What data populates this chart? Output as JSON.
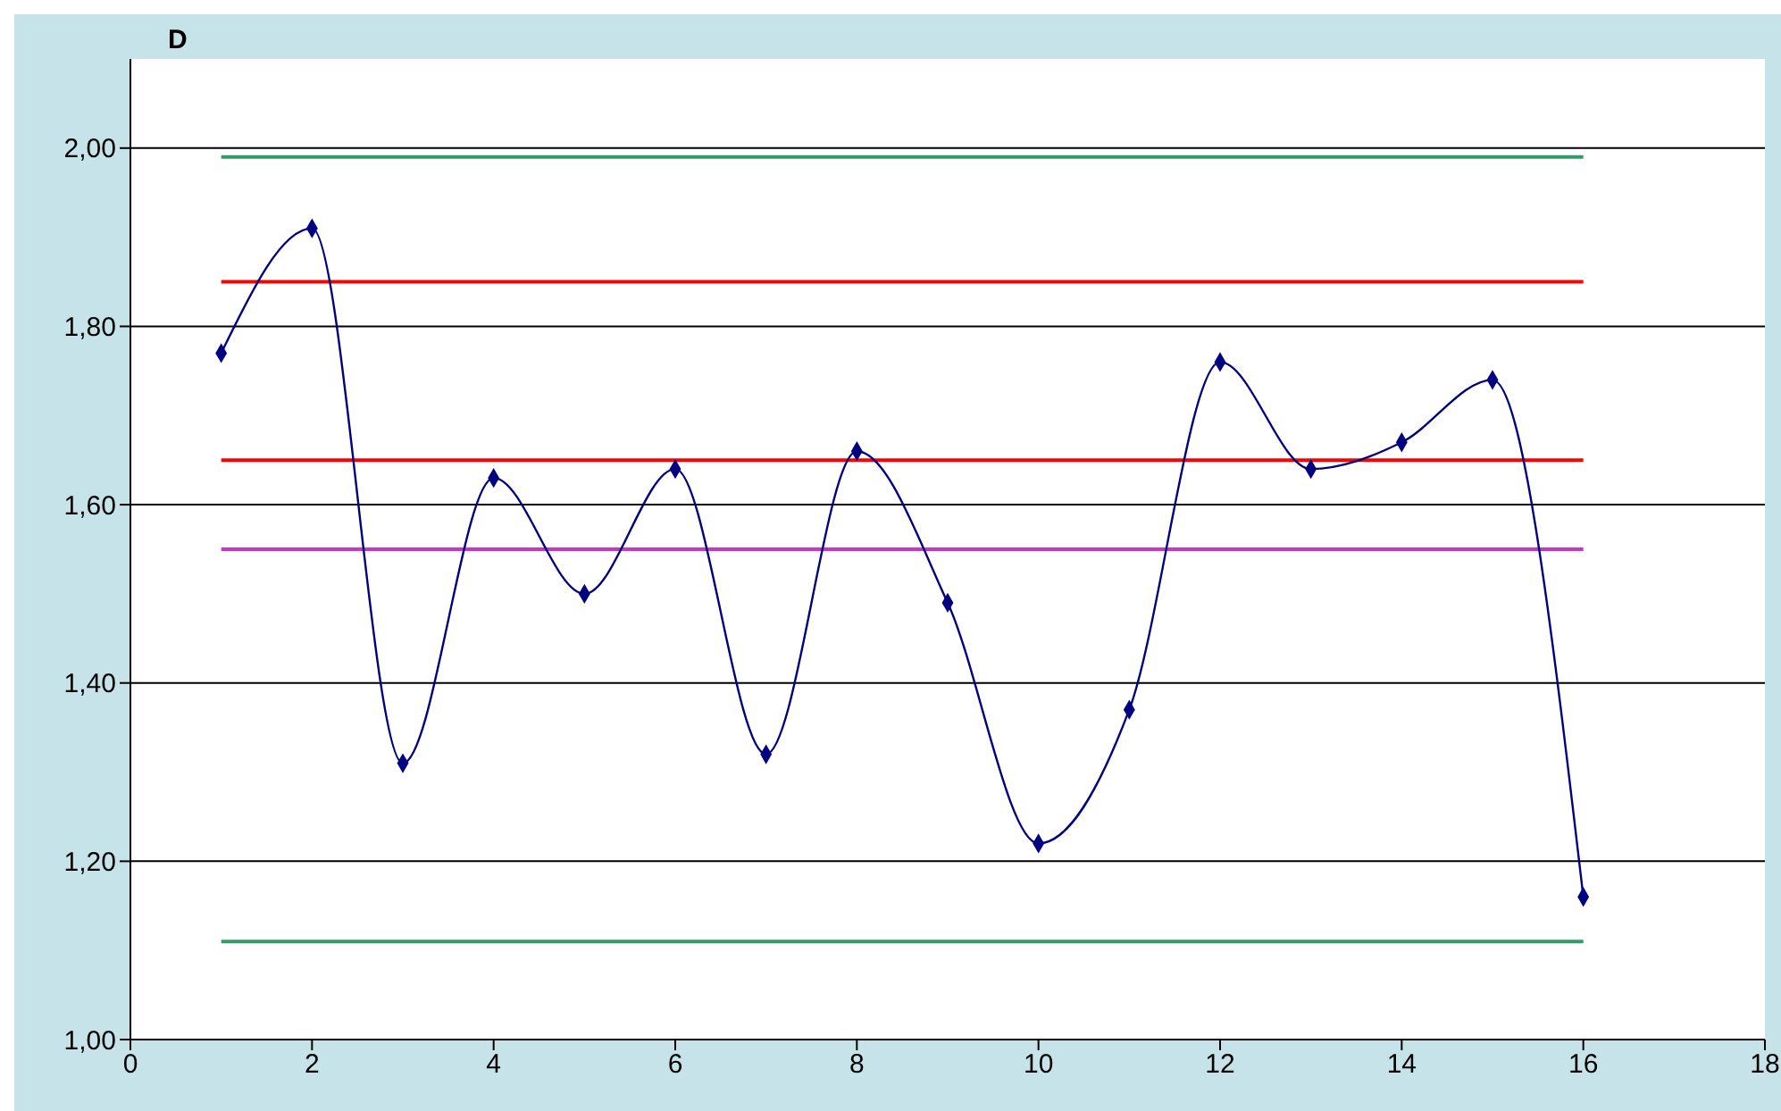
{
  "chart_data": {
    "type": "line",
    "title": "D",
    "xlim": [
      0,
      18
    ],
    "xticks": [
      0,
      2,
      4,
      6,
      8,
      10,
      12,
      14,
      16,
      18
    ],
    "ylim": [
      1,
      2.1
    ],
    "yticks": [
      {
        "value": 1,
        "label": "1,00"
      },
      {
        "value": 1.2,
        "label": "1,20"
      },
      {
        "value": 1.4,
        "label": "1,40"
      },
      {
        "value": 1.6,
        "label": "1,60"
      },
      {
        "value": 1.8,
        "label": "1,80"
      },
      {
        "value": 2,
        "label": "2,00"
      }
    ],
    "grid": "y",
    "x": [
      1,
      2,
      3,
      4,
      5,
      6,
      7,
      8,
      9,
      10,
      11,
      12,
      13,
      14,
      15,
      16
    ],
    "series": [
      {
        "color": "#339966",
        "marker": "none",
        "values": [
          1.99,
          1.99,
          1.99,
          1.99,
          1.99,
          1.99,
          1.99,
          1.99,
          1.99,
          1.99,
          1.99,
          1.99,
          1.99,
          1.99,
          1.99,
          1.99
        ]
      },
      {
        "color": "#ff0000",
        "marker": "none",
        "values": [
          1.85,
          1.85,
          1.85,
          1.85,
          1.85,
          1.85,
          1.85,
          1.85,
          1.85,
          1.85,
          1.85,
          1.85,
          1.85,
          1.85,
          1.85,
          1.85
        ]
      },
      {
        "color": "#ff0000",
        "marker": "none",
        "values": [
          1.65,
          1.65,
          1.65,
          1.65,
          1.65,
          1.65,
          1.65,
          1.65,
          1.65,
          1.65,
          1.65,
          1.65,
          1.65,
          1.65,
          1.65,
          1.65
        ]
      },
      {
        "color": "#cc33cc",
        "marker": "none",
        "values": [
          1.55,
          1.55,
          1.55,
          1.55,
          1.55,
          1.55,
          1.55,
          1.55,
          1.55,
          1.55,
          1.55,
          1.55,
          1.55,
          1.55,
          1.55,
          1.55
        ]
      },
      {
        "color": "#339966",
        "marker": "none",
        "values": [
          1.11,
          1.11,
          1.11,
          1.11,
          1.11,
          1.11,
          1.11,
          1.11,
          1.11,
          1.11,
          1.11,
          1.11,
          1.11,
          1.11,
          1.11,
          1.11
        ]
      },
      {
        "color": "#000080",
        "marker": "diamond",
        "values": [
          1.77,
          1.91,
          1.31,
          1.63,
          1.5,
          1.64,
          1.32,
          1.66,
          1.49,
          1.22,
          1.37,
          1.76,
          1.64,
          1.67,
          1.74,
          1.16
        ]
      }
    ]
  }
}
